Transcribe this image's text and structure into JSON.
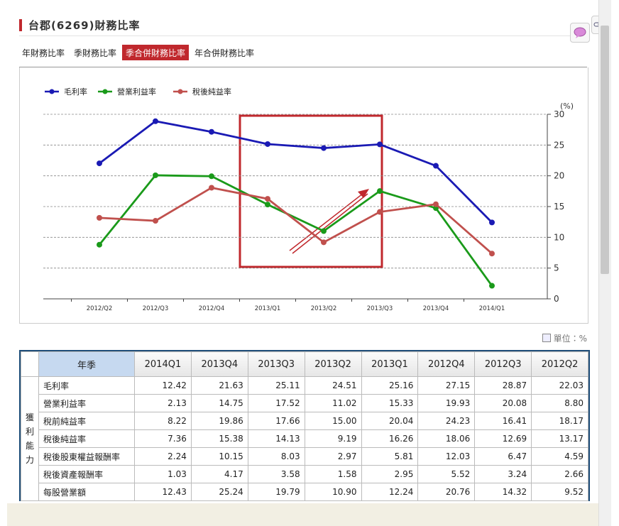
{
  "header": {
    "title": "台郡(6269)財務比率"
  },
  "tabs": [
    {
      "label": "年財務比率",
      "active": false
    },
    {
      "label": "季財務比率",
      "active": false
    },
    {
      "label": "季合併財務比率",
      "active": true
    },
    {
      "label": "年合併財務比率",
      "active": false
    }
  ],
  "chart_data": {
    "type": "line",
    "categories": [
      "2012/Q2",
      "2012/Q3",
      "2012/Q4",
      "2013/Q1",
      "2013/Q2",
      "2013/Q3",
      "2013/Q4",
      "2014/Q1"
    ],
    "series": [
      {
        "name": "毛利率",
        "color": "#1a1ab4",
        "values": [
          22.03,
          28.87,
          27.15,
          25.16,
          24.51,
          25.11,
          21.63,
          12.42
        ]
      },
      {
        "name": "營業利益率",
        "color": "#1a9a1a",
        "values": [
          8.8,
          20.08,
          19.93,
          15.33,
          11.02,
          17.52,
          14.75,
          2.13
        ]
      },
      {
        "name": "稅後純益率",
        "color": "#c0504d",
        "values": [
          13.17,
          12.69,
          18.06,
          16.26,
          9.19,
          14.13,
          15.38,
          7.36
        ]
      }
    ],
    "ylim": [
      0,
      30
    ],
    "yticks": [
      0,
      5,
      10,
      15,
      20,
      25,
      30
    ],
    "y_unit": "(%)",
    "grid": true,
    "legend": "top-left"
  },
  "unit_note": "單位：%",
  "table": {
    "group_label": "獲利能力",
    "header": [
      "年季",
      "2014Q1",
      "2013Q4",
      "2013Q3",
      "2013Q2",
      "2013Q1",
      "2012Q4",
      "2012Q3",
      "2012Q2"
    ],
    "rows": [
      [
        "毛利率",
        "12.42",
        "21.63",
        "25.11",
        "24.51",
        "25.16",
        "27.15",
        "28.87",
        "22.03"
      ],
      [
        "營業利益率",
        "2.13",
        "14.75",
        "17.52",
        "11.02",
        "15.33",
        "19.93",
        "20.08",
        "8.80"
      ],
      [
        "稅前純益率",
        "8.22",
        "19.86",
        "17.66",
        "15.00",
        "20.04",
        "24.23",
        "16.41",
        "18.17"
      ],
      [
        "稅後純益率",
        "7.36",
        "15.38",
        "14.13",
        "9.19",
        "16.26",
        "18.06",
        "12.69",
        "13.17"
      ],
      [
        "稅後股東權益報酬率",
        "2.24",
        "10.15",
        "8.03",
        "2.97",
        "5.81",
        "12.03",
        "6.47",
        "4.59"
      ],
      [
        "稅後資產報酬率",
        "1.03",
        "4.17",
        "3.58",
        "1.58",
        "2.95",
        "5.52",
        "3.24",
        "2.66"
      ],
      [
        "每股營業額",
        "12.43",
        "25.24",
        "19.79",
        "10.90",
        "12.24",
        "20.76",
        "14.32",
        "9.52"
      ]
    ]
  }
}
